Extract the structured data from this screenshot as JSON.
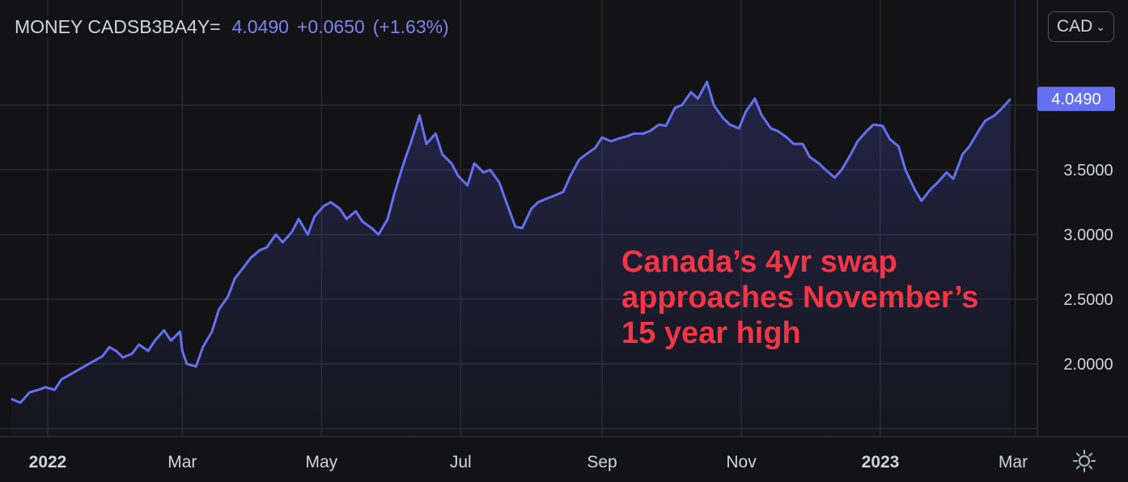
{
  "legend": {
    "symbol": "MONEY CADSB3BA4Y=",
    "value": "4.0490",
    "change": "+0.0650",
    "change_pct": "(+1.63%)"
  },
  "currency_button": {
    "label": "CAD"
  },
  "last_price_label": "4.0490",
  "annotation": [
    "Canada’s 4yr swap",
    "approaches November’s",
    "15 year high"
  ],
  "colors": {
    "background": "#131316",
    "line": "#6470f0",
    "grid": "#2a2e39",
    "annotation": "#f23645",
    "text": "#d1d4dc"
  },
  "chart_data": {
    "type": "area",
    "title": "",
    "xlabel": "",
    "ylabel": "",
    "y_ticks": [
      "2.0000",
      "2.5000",
      "3.0000",
      "3.5000"
    ],
    "x_ticks": [
      {
        "label": "2022",
        "bold": true,
        "date": "2022-01-01"
      },
      {
        "label": "Mar",
        "bold": false,
        "date": "2022-03-01"
      },
      {
        "label": "May",
        "bold": false,
        "date": "2022-05-01"
      },
      {
        "label": "Jul",
        "bold": false,
        "date": "2022-07-01"
      },
      {
        "label": "Sep",
        "bold": false,
        "date": "2022-09-01"
      },
      {
        "label": "Nov",
        "bold": false,
        "date": "2022-11-01"
      },
      {
        "label": "2023",
        "bold": true,
        "date": "2023-01-01"
      },
      {
        "label": "Mar",
        "bold": false,
        "date": "2023-03-01"
      }
    ],
    "ylim": [
      1.45,
      4.3
    ],
    "grid": true,
    "series": [
      {
        "values": [
          [
            "2021-12-16",
            1.73
          ],
          [
            "2021-12-20",
            1.7
          ],
          [
            "2021-12-24",
            1.78
          ],
          [
            "2021-12-28",
            1.8
          ],
          [
            "2021-12-31",
            1.82
          ],
          [
            "2022-01-04",
            1.8
          ],
          [
            "2022-01-07",
            1.88
          ],
          [
            "2022-01-11",
            1.92
          ],
          [
            "2022-01-14",
            1.95
          ],
          [
            "2022-01-18",
            1.99
          ],
          [
            "2022-01-21",
            2.02
          ],
          [
            "2022-01-25",
            2.06
          ],
          [
            "2022-01-28",
            2.13
          ],
          [
            "2022-01-31",
            2.1
          ],
          [
            "2022-02-03",
            2.05
          ],
          [
            "2022-02-07",
            2.08
          ],
          [
            "2022-02-10",
            2.15
          ],
          [
            "2022-02-14",
            2.1
          ],
          [
            "2022-02-17",
            2.18
          ],
          [
            "2022-02-21",
            2.26
          ],
          [
            "2022-02-24",
            2.18
          ],
          [
            "2022-02-28",
            2.25
          ],
          [
            "2022-03-01",
            2.1
          ],
          [
            "2022-03-03",
            2.0
          ],
          [
            "2022-03-07",
            1.98
          ],
          [
            "2022-03-10",
            2.13
          ],
          [
            "2022-03-14",
            2.25
          ],
          [
            "2022-03-17",
            2.42
          ],
          [
            "2022-03-21",
            2.52
          ],
          [
            "2022-03-24",
            2.66
          ],
          [
            "2022-03-28",
            2.75
          ],
          [
            "2022-03-31",
            2.82
          ],
          [
            "2022-04-04",
            2.88
          ],
          [
            "2022-04-07",
            2.9
          ],
          [
            "2022-04-11",
            3.0
          ],
          [
            "2022-04-14",
            2.94
          ],
          [
            "2022-04-18",
            3.02
          ],
          [
            "2022-04-21",
            3.12
          ],
          [
            "2022-04-25",
            3.0
          ],
          [
            "2022-04-28",
            3.14
          ],
          [
            "2022-05-02",
            3.22
          ],
          [
            "2022-05-05",
            3.25
          ],
          [
            "2022-05-09",
            3.2
          ],
          [
            "2022-05-12",
            3.12
          ],
          [
            "2022-05-16",
            3.18
          ],
          [
            "2022-05-19",
            3.1
          ],
          [
            "2022-05-23",
            3.05
          ],
          [
            "2022-05-26",
            3.0
          ],
          [
            "2022-05-30",
            3.12
          ],
          [
            "2022-06-02",
            3.32
          ],
          [
            "2022-06-06",
            3.55
          ],
          [
            "2022-06-09",
            3.7
          ],
          [
            "2022-06-13",
            3.92
          ],
          [
            "2022-06-16",
            3.7
          ],
          [
            "2022-06-20",
            3.78
          ],
          [
            "2022-06-23",
            3.62
          ],
          [
            "2022-06-27",
            3.55
          ],
          [
            "2022-06-30",
            3.45
          ],
          [
            "2022-07-04",
            3.38
          ],
          [
            "2022-07-07",
            3.55
          ],
          [
            "2022-07-11",
            3.48
          ],
          [
            "2022-07-14",
            3.5
          ],
          [
            "2022-07-18",
            3.4
          ],
          [
            "2022-07-21",
            3.25
          ],
          [
            "2022-07-25",
            3.06
          ],
          [
            "2022-07-28",
            3.05
          ],
          [
            "2022-08-01",
            3.2
          ],
          [
            "2022-08-04",
            3.25
          ],
          [
            "2022-08-08",
            3.28
          ],
          [
            "2022-08-11",
            3.3
          ],
          [
            "2022-08-15",
            3.33
          ],
          [
            "2022-08-18",
            3.45
          ],
          [
            "2022-08-22",
            3.58
          ],
          [
            "2022-08-25",
            3.62
          ],
          [
            "2022-08-29",
            3.67
          ],
          [
            "2022-09-01",
            3.75
          ],
          [
            "2022-09-05",
            3.72
          ],
          [
            "2022-09-08",
            3.74
          ],
          [
            "2022-09-12",
            3.76
          ],
          [
            "2022-09-15",
            3.78
          ],
          [
            "2022-09-19",
            3.78
          ],
          [
            "2022-09-22",
            3.8
          ],
          [
            "2022-09-26",
            3.85
          ],
          [
            "2022-09-29",
            3.84
          ],
          [
            "2022-10-03",
            3.98
          ],
          [
            "2022-10-06",
            4.0
          ],
          [
            "2022-10-10",
            4.1
          ],
          [
            "2022-10-13",
            4.05
          ],
          [
            "2022-10-17",
            4.18
          ],
          [
            "2022-10-20",
            4.0
          ],
          [
            "2022-10-24",
            3.9
          ],
          [
            "2022-10-27",
            3.85
          ],
          [
            "2022-10-31",
            3.82
          ],
          [
            "2022-11-03",
            3.95
          ],
          [
            "2022-11-07",
            4.05
          ],
          [
            "2022-11-10",
            3.92
          ],
          [
            "2022-11-14",
            3.82
          ],
          [
            "2022-11-17",
            3.8
          ],
          [
            "2022-11-21",
            3.75
          ],
          [
            "2022-11-24",
            3.7
          ],
          [
            "2022-11-28",
            3.7
          ],
          [
            "2022-12-01",
            3.6
          ],
          [
            "2022-12-05",
            3.55
          ],
          [
            "2022-12-08",
            3.5
          ],
          [
            "2022-12-12",
            3.44
          ],
          [
            "2022-12-15",
            3.5
          ],
          [
            "2022-12-19",
            3.62
          ],
          [
            "2022-12-22",
            3.72
          ],
          [
            "2022-12-26",
            3.8
          ],
          [
            "2022-12-29",
            3.85
          ],
          [
            "2023-01-02",
            3.84
          ],
          [
            "2023-01-05",
            3.74
          ],
          [
            "2023-01-09",
            3.68
          ],
          [
            "2023-01-12",
            3.5
          ],
          [
            "2023-01-16",
            3.35
          ],
          [
            "2023-01-19",
            3.26
          ],
          [
            "2023-01-23",
            3.35
          ],
          [
            "2023-01-26",
            3.4
          ],
          [
            "2023-01-30",
            3.48
          ],
          [
            "2023-02-02",
            3.43
          ],
          [
            "2023-02-06",
            3.62
          ],
          [
            "2023-02-09",
            3.68
          ],
          [
            "2023-02-13",
            3.8
          ],
          [
            "2023-02-16",
            3.88
          ],
          [
            "2023-02-20",
            3.92
          ],
          [
            "2023-02-23",
            3.97
          ],
          [
            "2023-02-27",
            4.049
          ]
        ]
      }
    ]
  }
}
